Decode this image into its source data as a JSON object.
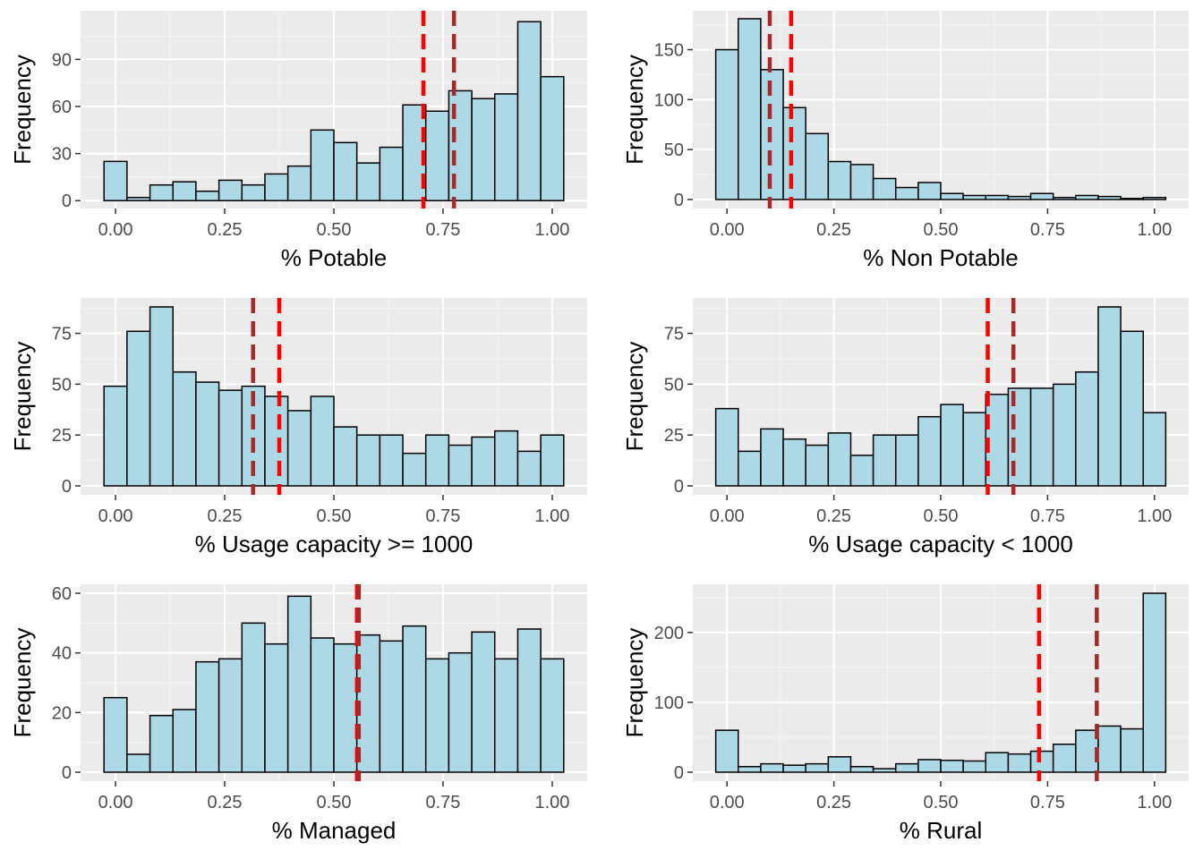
{
  "colors": {
    "panel_bg": "#EBEBEB",
    "grid_major": "#FFFFFF",
    "grid_minor": "#F5F5F5",
    "bar_fill": "#ADD8E6",
    "bar_outline": "#000000",
    "line_red": "#FF0000",
    "line_brown": "#A52A2A"
  },
  "chart_data": [
    {
      "type": "bar",
      "chart_kind": "histogram",
      "xlabel": "% Potable",
      "ylabel": "Frequency",
      "xlim": [
        -0.08,
        1.08
      ],
      "ylim": [
        -5,
        121
      ],
      "x_ticks": [
        0.0,
        0.25,
        0.5,
        0.75,
        1.0
      ],
      "x_tick_labels": [
        "0.00",
        "0.25",
        "0.50",
        "0.75",
        "1.00"
      ],
      "y_ticks": [
        0,
        30,
        60,
        90
      ],
      "y_tick_labels": [
        "0",
        "30",
        "60",
        "90"
      ],
      "bin_width": 0.0526,
      "bin_centers": [
        0,
        0.0526,
        0.1053,
        0.1579,
        0.2105,
        0.2632,
        0.3158,
        0.3684,
        0.4211,
        0.4737,
        0.5263,
        0.5789,
        0.6316,
        0.6842,
        0.7368,
        0.7895,
        0.8421,
        0.8947,
        0.9474,
        1.0
      ],
      "values": [
        25,
        2,
        10,
        12,
        6,
        13,
        10,
        17,
        22,
        45,
        37,
        24,
        34,
        61,
        57,
        70,
        65,
        68,
        114,
        79
      ],
      "vlines": [
        {
          "x": 0.705,
          "color": "red"
        },
        {
          "x": 0.775,
          "color": "brown"
        }
      ],
      "grid": true
    },
    {
      "type": "bar",
      "chart_kind": "histogram",
      "xlabel": "% Non Potable",
      "ylabel": "Frequency",
      "xlim": [
        -0.08,
        1.08
      ],
      "ylim": [
        -9,
        189
      ],
      "x_ticks": [
        0.0,
        0.25,
        0.5,
        0.75,
        1.0
      ],
      "x_tick_labels": [
        "0.00",
        "0.25",
        "0.50",
        "0.75",
        "1.00"
      ],
      "y_ticks": [
        0,
        50,
        100,
        150
      ],
      "y_tick_labels": [
        "0",
        "50",
        "100",
        "150"
      ],
      "bin_width": 0.0526,
      "bin_centers": [
        0,
        0.0526,
        0.1053,
        0.1579,
        0.2105,
        0.2632,
        0.3158,
        0.3684,
        0.4211,
        0.4737,
        0.5263,
        0.5789,
        0.6316,
        0.6842,
        0.7368,
        0.7895,
        0.8421,
        0.8947,
        0.9474,
        1.0
      ],
      "values": [
        150,
        181,
        130,
        92,
        66,
        38,
        35,
        21,
        12,
        17,
        6,
        4,
        4,
        3,
        6,
        2,
        4,
        3,
        1,
        2
      ],
      "vlines": [
        {
          "x": 0.1,
          "color": "brown"
        },
        {
          "x": 0.15,
          "color": "red"
        }
      ],
      "grid": true
    },
    {
      "type": "bar",
      "chart_kind": "histogram",
      "xlabel": "% Usage capacity >= 1000",
      "ylabel": "Frequency",
      "xlim": [
        -0.08,
        1.08
      ],
      "ylim": [
        -4.4,
        92.4
      ],
      "x_ticks": [
        0.0,
        0.25,
        0.5,
        0.75,
        1.0
      ],
      "x_tick_labels": [
        "0.00",
        "0.25",
        "0.50",
        "0.75",
        "1.00"
      ],
      "y_ticks": [
        0,
        25,
        50,
        75
      ],
      "y_tick_labels": [
        "0",
        "25",
        "50",
        "75"
      ],
      "bin_width": 0.0526,
      "bin_centers": [
        0,
        0.0526,
        0.1053,
        0.1579,
        0.2105,
        0.2632,
        0.3158,
        0.3684,
        0.4211,
        0.4737,
        0.5263,
        0.5789,
        0.6316,
        0.6842,
        0.7368,
        0.7895,
        0.8421,
        0.8947,
        0.9474,
        1.0
      ],
      "values": [
        49,
        76,
        88,
        56,
        51,
        47,
        49,
        44,
        37,
        44,
        29,
        25,
        25,
        16,
        25,
        20,
        24,
        27,
        17,
        25
      ],
      "vlines": [
        {
          "x": 0.315,
          "color": "brown"
        },
        {
          "x": 0.375,
          "color": "red"
        }
      ],
      "grid": true
    },
    {
      "type": "bar",
      "chart_kind": "histogram",
      "xlabel": "% Usage capacity < 1000",
      "ylabel": "Frequency",
      "xlim": [
        -0.08,
        1.08
      ],
      "ylim": [
        -4.4,
        92.4
      ],
      "x_ticks": [
        0.0,
        0.25,
        0.5,
        0.75,
        1.0
      ],
      "x_tick_labels": [
        "0.00",
        "0.25",
        "0.50",
        "0.75",
        "1.00"
      ],
      "y_ticks": [
        0,
        25,
        50,
        75
      ],
      "y_tick_labels": [
        "0",
        "25",
        "50",
        "75"
      ],
      "bin_width": 0.0526,
      "bin_centers": [
        0,
        0.0526,
        0.1053,
        0.1579,
        0.2105,
        0.2632,
        0.3158,
        0.3684,
        0.4211,
        0.4737,
        0.5263,
        0.5789,
        0.6316,
        0.6842,
        0.7368,
        0.7895,
        0.8421,
        0.8947,
        0.9474,
        1.0
      ],
      "values": [
        38,
        17,
        28,
        23,
        20,
        26,
        15,
        25,
        25,
        34,
        40,
        36,
        45,
        48,
        48,
        50,
        56,
        88,
        76,
        36
      ],
      "vlines": [
        {
          "x": 0.61,
          "color": "red"
        },
        {
          "x": 0.67,
          "color": "brown"
        }
      ],
      "grid": true
    },
    {
      "type": "bar",
      "chart_kind": "histogram",
      "xlabel": "% Managed",
      "ylabel": "Frequency",
      "xlim": [
        -0.08,
        1.08
      ],
      "ylim": [
        -3,
        63
      ],
      "x_ticks": [
        0.0,
        0.25,
        0.5,
        0.75,
        1.0
      ],
      "x_tick_labels": [
        "0.00",
        "0.25",
        "0.50",
        "0.75",
        "1.00"
      ],
      "y_ticks": [
        0,
        20,
        40,
        60
      ],
      "y_tick_labels": [
        "0",
        "20",
        "40",
        "60"
      ],
      "bin_width": 0.0526,
      "bin_centers": [
        0,
        0.0526,
        0.1053,
        0.1579,
        0.2105,
        0.2632,
        0.3158,
        0.3684,
        0.4211,
        0.4737,
        0.5263,
        0.5789,
        0.6316,
        0.6842,
        0.7368,
        0.7895,
        0.8421,
        0.8947,
        0.9474,
        1.0
      ],
      "values": [
        25,
        6,
        19,
        21,
        37,
        38,
        50,
        43,
        59,
        45,
        43,
        46,
        44,
        49,
        38,
        40,
        47,
        38,
        48,
        38
      ],
      "vlines": [
        {
          "x": 0.553,
          "color": "red"
        },
        {
          "x": 0.557,
          "color": "brown"
        }
      ],
      "grid": true
    },
    {
      "type": "bar",
      "chart_kind": "histogram",
      "xlabel": "% Rural",
      "ylabel": "Frequency",
      "xlim": [
        -0.08,
        1.08
      ],
      "ylim": [
        -12.8,
        268.8
      ],
      "x_ticks": [
        0.0,
        0.25,
        0.5,
        0.75,
        1.0
      ],
      "x_tick_labels": [
        "0.00",
        "0.25",
        "0.50",
        "0.75",
        "1.00"
      ],
      "y_ticks": [
        0,
        100,
        200
      ],
      "y_tick_labels": [
        "0",
        "100",
        "200"
      ],
      "bin_width": 0.0526,
      "bin_centers": [
        0,
        0.0526,
        0.1053,
        0.1579,
        0.2105,
        0.2632,
        0.3158,
        0.3684,
        0.4211,
        0.4737,
        0.5263,
        0.5789,
        0.6316,
        0.6842,
        0.7368,
        0.7895,
        0.8421,
        0.8947,
        0.9474,
        1.0
      ],
      "values": [
        60,
        8,
        12,
        10,
        12,
        22,
        8,
        5,
        12,
        18,
        17,
        16,
        28,
        26,
        30,
        40,
        60,
        66,
        62,
        256
      ],
      "vlines": [
        {
          "x": 0.73,
          "color": "red"
        },
        {
          "x": 0.865,
          "color": "brown"
        }
      ],
      "grid": true
    }
  ]
}
